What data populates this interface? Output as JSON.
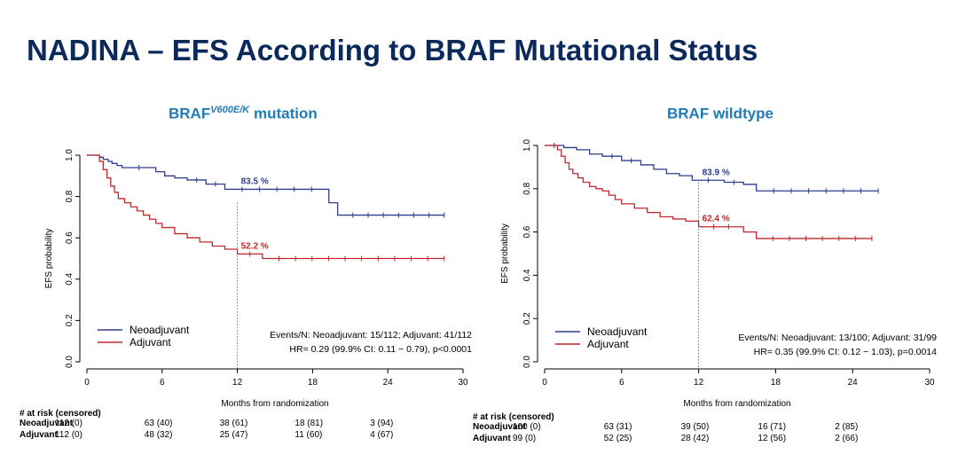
{
  "slide": {
    "title": "NADINA – EFS According to BRAF Mutational Status"
  },
  "colors": {
    "title": "#0b2a5b",
    "panel_title": "#1f7ab8",
    "neoadjuvant": "#2e3d8f",
    "adjuvant": "#c0282c"
  },
  "chart_data": [
    {
      "type": "line",
      "title_main": "BRAF",
      "title_sup": "V600E/K",
      "title_rest": " mutation",
      "xlabel": "Months from randomization",
      "ylabel": "EFS probability",
      "xlim": [
        0,
        30
      ],
      "ylim": [
        0,
        1
      ],
      "xticks": [
        0,
        6,
        12,
        18,
        24,
        30
      ],
      "yticks": [
        "0.0",
        "0.2",
        "0.4",
        "0.6",
        "0.8",
        "1.0"
      ],
      "legend_position": "bottom-left",
      "reference_x": 12,
      "series": [
        {
          "name": "Neoadjuvant",
          "color": "#2e3d8f",
          "label_at_12": "83.5 %",
          "x": [
            0,
            1.0,
            1.3,
            1.7,
            2.0,
            2.4,
            2.8,
            5.5,
            6.2,
            7.0,
            8.0,
            9.5,
            11.0,
            19.3,
            20.0,
            28.5
          ],
          "y": [
            1.0,
            0.99,
            0.98,
            0.97,
            0.96,
            0.95,
            0.94,
            0.92,
            0.9,
            0.89,
            0.88,
            0.86,
            0.835,
            0.77,
            0.71,
            0.71
          ]
        },
        {
          "name": "Adjuvant",
          "color": "#c0282c",
          "label_at_12": "52.2 %",
          "x": [
            0,
            1.0,
            1.3,
            1.6,
            1.9,
            2.2,
            2.5,
            3.0,
            3.5,
            4.0,
            4.5,
            5.0,
            5.5,
            6.0,
            7.0,
            8.0,
            9.0,
            10.0,
            11.0,
            12.0,
            14.0,
            28.5
          ],
          "y": [
            1.0,
            0.97,
            0.93,
            0.89,
            0.85,
            0.82,
            0.79,
            0.77,
            0.75,
            0.73,
            0.71,
            0.69,
            0.67,
            0.65,
            0.62,
            0.6,
            0.58,
            0.56,
            0.545,
            0.522,
            0.5,
            0.5
          ]
        }
      ],
      "stats": {
        "events": "Events/N: Neoadjuvant: 15/112; Adjuvant: 41/112",
        "hr": "HR= 0.29 (99.9% CI: 0.11 − 0.79), p<0.0001"
      },
      "risk_table": {
        "header": "# at risk (censored)",
        "times": [
          0,
          6,
          12,
          18,
          24
        ],
        "rows": [
          {
            "label": "Neoadjuvant",
            "cells": [
              "112 (0)",
              "63 (40)",
              "38 (61)",
              "18 (81)",
              "3 (94)"
            ]
          },
          {
            "label": "Adjuvant",
            "cells": [
              "112 (0)",
              "48 (32)",
              "25 (47)",
              "11 (60)",
              "4 (67)"
            ]
          }
        ]
      }
    },
    {
      "type": "line",
      "title_main": "BRAF wildtype",
      "title_sup": "",
      "title_rest": "",
      "xlabel": "Months from randomization",
      "ylabel": "EFS probability",
      "xlim": [
        0,
        30
      ],
      "ylim": [
        0,
        1
      ],
      "xticks": [
        0,
        6,
        12,
        18,
        24,
        30
      ],
      "yticks": [
        "0.0",
        "0.2",
        "0.4",
        "0.6",
        "0.8",
        "1.0"
      ],
      "legend_position": "bottom-left",
      "reference_x": 12,
      "series": [
        {
          "name": "Neoadjuvant",
          "color": "#2e3d8f",
          "label_at_12": "83.9 %",
          "x": [
            0,
            1.5,
            2.5,
            3.5,
            4.5,
            6.0,
            7.5,
            8.5,
            9.5,
            10.5,
            11.5,
            14.0,
            15.5,
            16.5,
            26.0
          ],
          "y": [
            1.0,
            0.99,
            0.98,
            0.96,
            0.95,
            0.93,
            0.91,
            0.89,
            0.87,
            0.86,
            0.839,
            0.83,
            0.82,
            0.79,
            0.79
          ]
        },
        {
          "name": "Adjuvant",
          "color": "#c0282c",
          "label_at_12": "62.4 %",
          "x": [
            0,
            1.0,
            1.3,
            1.6,
            1.9,
            2.2,
            2.6,
            3.0,
            3.5,
            4.0,
            4.5,
            5.0,
            5.5,
            6.0,
            7.0,
            8.0,
            9.0,
            10.0,
            11.0,
            12.0,
            15.5,
            16.5,
            25.5
          ],
          "y": [
            1.0,
            0.98,
            0.95,
            0.92,
            0.89,
            0.87,
            0.85,
            0.83,
            0.81,
            0.8,
            0.79,
            0.77,
            0.75,
            0.73,
            0.71,
            0.69,
            0.67,
            0.66,
            0.65,
            0.624,
            0.6,
            0.57,
            0.57
          ]
        }
      ],
      "stats": {
        "events": "Events/N: Neoadjuvant: 13/100; Adjuvant: 31/99",
        "hr": "HR= 0.35 (99.9% CI: 0.12 − 1.03), p=0.0014"
      },
      "risk_table": {
        "header": "# at risk (censored)",
        "times": [
          0,
          6,
          12,
          18,
          24
        ],
        "rows": [
          {
            "label": "Neoadjuvant",
            "cells": [
              "100 (0)",
              "63 (31)",
              "39 (50)",
              "16 (71)",
              "2 (85)"
            ]
          },
          {
            "label": "Adjuvant",
            "cells": [
              "99 (0)",
              "52 (25)",
              "28 (42)",
              "12 (56)",
              "2 (66)"
            ]
          }
        ]
      }
    }
  ]
}
